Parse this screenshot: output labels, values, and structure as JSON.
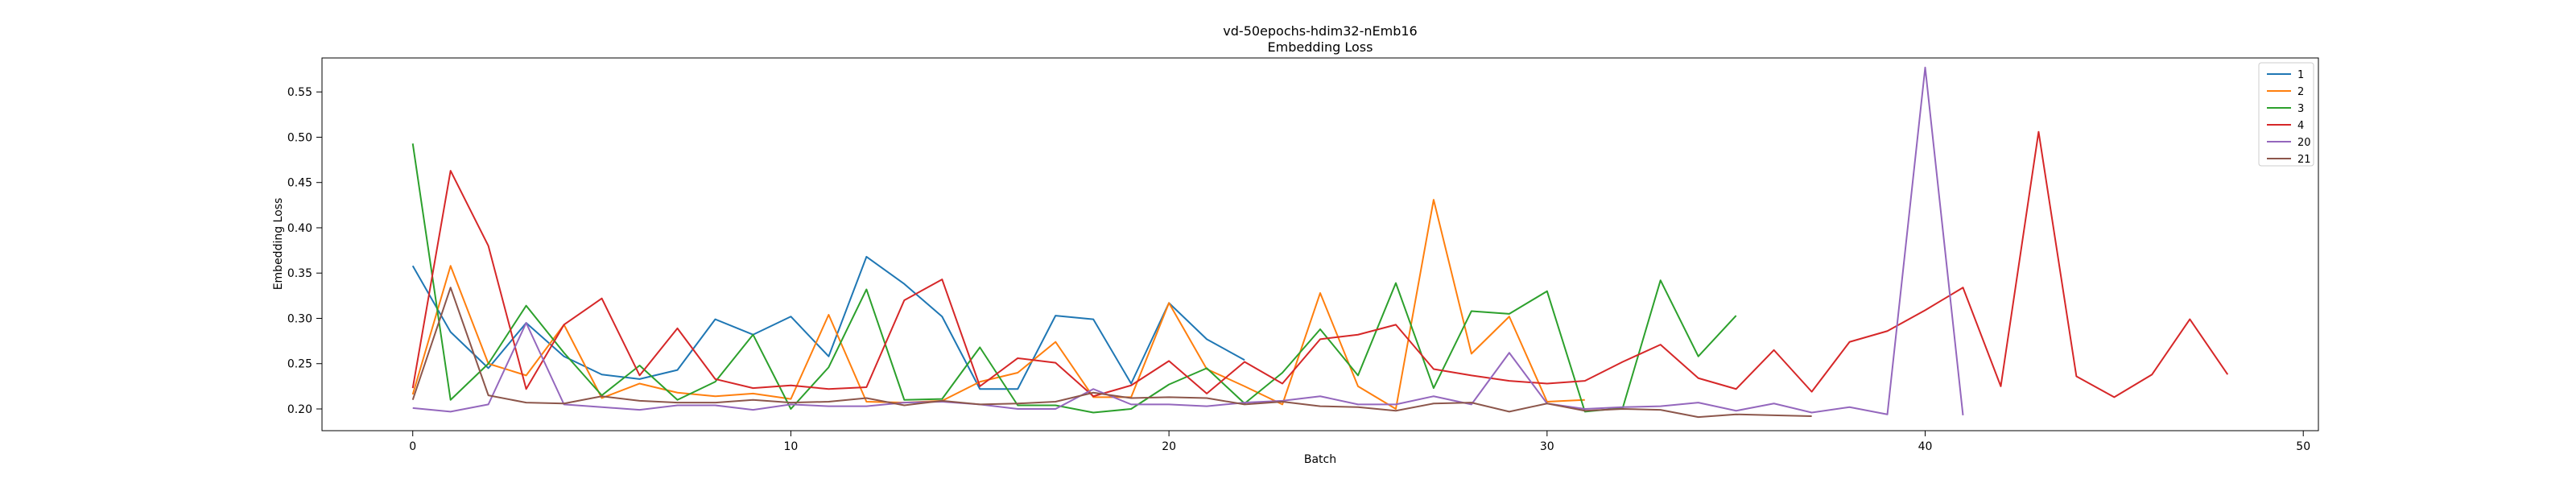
{
  "chart_data": {
    "type": "line",
    "title": "vd-50epochs-hdim32-nEmb16",
    "subtitle": "Embedding Loss",
    "xlabel": "Batch",
    "ylabel": "Embedding Loss",
    "xlim": [
      -2.4,
      50.4
    ],
    "ylim": [
      0.176,
      0.5875
    ],
    "xticks": [
      0,
      10,
      20,
      30,
      40,
      50
    ],
    "yticks": [
      0.2,
      0.25,
      0.3,
      0.35,
      0.4,
      0.45,
      0.5,
      0.55
    ],
    "xtick_labels": [
      "0",
      "10",
      "20",
      "30",
      "40",
      "50"
    ],
    "ytick_labels": [
      "0.20",
      "0.25",
      "0.30",
      "0.35",
      "0.40",
      "0.45",
      "0.50",
      "0.55"
    ],
    "grid": false,
    "legend_position": "top-right",
    "series": [
      {
        "name": "1",
        "color": "#1f77b4",
        "values": [
          0.358,
          0.285,
          0.245,
          0.295,
          0.258,
          0.238,
          0.233,
          0.243,
          0.299,
          0.282,
          0.302,
          0.258,
          0.368,
          0.338,
          0.302,
          0.222,
          0.222,
          0.303,
          0.299,
          0.228,
          0.317,
          0.277,
          0.254
        ]
      },
      {
        "name": "2",
        "color": "#ff7f0e",
        "values": [
          0.216,
          0.358,
          0.25,
          0.237,
          0.293,
          0.212,
          0.228,
          0.218,
          0.214,
          0.217,
          0.211,
          0.304,
          0.208,
          0.207,
          0.209,
          0.23,
          0.24,
          0.274,
          0.213,
          0.213,
          0.317,
          0.244,
          0.225,
          0.205,
          0.328,
          0.225,
          0.2,
          0.431,
          0.261,
          0.302,
          0.208,
          0.21
        ]
      },
      {
        "name": "3",
        "color": "#2ca02c",
        "values": [
          0.493,
          0.21,
          0.25,
          0.314,
          0.262,
          0.215,
          0.248,
          0.21,
          0.23,
          0.282,
          0.2,
          0.246,
          0.332,
          0.21,
          0.211,
          0.268,
          0.204,
          0.204,
          0.196,
          0.2,
          0.227,
          0.245,
          0.206,
          0.24,
          0.288,
          0.237,
          0.339,
          0.223,
          0.308,
          0.305,
          0.33,
          0.197,
          0.201,
          0.342,
          0.258,
          0.303
        ]
      },
      {
        "name": "4",
        "color": "#d62728",
        "values": [
          0.223,
          0.463,
          0.38,
          0.222,
          0.293,
          0.322,
          0.237,
          0.289,
          0.233,
          0.223,
          0.226,
          0.222,
          0.224,
          0.32,
          0.343,
          0.225,
          0.256,
          0.251,
          0.214,
          0.226,
          0.253,
          0.217,
          0.252,
          0.228,
          0.277,
          0.282,
          0.293,
          0.244,
          0.237,
          0.231,
          0.228,
          0.231,
          0.252,
          0.271,
          0.234,
          0.222,
          0.265,
          0.219,
          0.274,
          0.286,
          0.309,
          0.334,
          0.225,
          0.506,
          0.236,
          0.213,
          0.238,
          0.299,
          0.238
        ]
      },
      {
        "name": "20",
        "color": "#9467bd",
        "values": [
          0.201,
          0.197,
          0.205,
          0.295,
          0.205,
          0.202,
          0.199,
          0.204,
          0.204,
          0.199,
          0.205,
          0.203,
          0.203,
          0.207,
          0.208,
          0.205,
          0.2,
          0.2,
          0.222,
          0.205,
          0.205,
          0.203,
          0.207,
          0.209,
          0.214,
          0.205,
          0.205,
          0.214,
          0.205,
          0.262,
          0.206,
          0.2,
          0.202,
          0.203,
          0.207,
          0.198,
          0.206,
          0.196,
          0.202,
          0.194,
          0.577,
          0.193
        ]
      },
      {
        "name": "21",
        "color": "#8c564b",
        "values": [
          0.21,
          0.334,
          0.215,
          0.207,
          0.206,
          0.214,
          0.209,
          0.207,
          0.207,
          0.21,
          0.207,
          0.208,
          0.212,
          0.204,
          0.209,
          0.205,
          0.206,
          0.208,
          0.218,
          0.212,
          0.213,
          0.212,
          0.205,
          0.208,
          0.203,
          0.202,
          0.198,
          0.206,
          0.207,
          0.197,
          0.206,
          0.198,
          0.2,
          0.199,
          0.191,
          0.194,
          0.193,
          0.192
        ]
      }
    ]
  }
}
